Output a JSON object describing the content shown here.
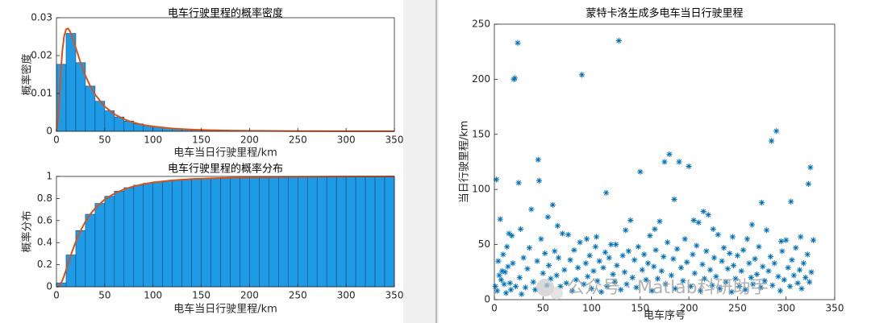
{
  "chart_data": [
    {
      "type": "histogram",
      "title": "电车行驶里程的概率密度",
      "xlabel": "电车当日行驶里程/km",
      "ylabel": "概率密度",
      "xlim": [
        0,
        350
      ],
      "ylim": [
        0,
        0.03
      ],
      "xticks": [
        0,
        50,
        100,
        150,
        200,
        250,
        300,
        350
      ],
      "yticks": [
        0,
        0.01,
        0.02,
        0.03
      ],
      "bins": [
        0,
        10,
        20,
        30,
        40,
        50,
        60,
        70,
        80,
        90,
        100,
        110,
        120,
        130,
        140,
        150,
        160,
        170,
        180,
        190,
        200,
        210,
        220,
        230,
        240,
        250,
        260,
        270,
        280,
        290,
        300,
        310,
        320,
        330,
        340,
        350
      ],
      "values": [
        0.01769,
        0.02585,
        0.01813,
        0.01194,
        0.00794,
        0.00542,
        0.00378,
        0.0027,
        0.00197,
        0.00146,
        0.0011,
        0.00084,
        0.00066,
        0.00051,
        0.00041,
        0.00033,
        0.00026,
        0.00021,
        0.00018,
        0.00014,
        0.00012,
        0.0001,
        8.5e-05,
        7.1e-05,
        6.1e-05,
        5.2e-05,
        4.4e-05,
        3.8e-05,
        3.3e-05,
        2.8e-05,
        2.5e-05,
        2.1e-05,
        1.9e-05,
        1.6e-05,
        1.4e-05
      ],
      "color": "#1f9be6",
      "line": {
        "x": [
          0,
          2,
          4,
          6,
          8,
          10,
          12,
          14,
          16,
          20,
          25,
          30,
          35,
          40,
          50,
          60,
          70,
          80,
          90,
          100,
          120,
          140,
          160,
          180,
          200,
          250,
          300,
          350
        ],
        "values": [
          0,
          0.00392,
          0.01354,
          0.021,
          0.0252,
          0.02696,
          0.02716,
          0.02643,
          0.0252,
          0.02207,
          0.01813,
          0.01472,
          0.01194,
          0.00971,
          0.00654,
          0.00451,
          0.00319,
          0.0023,
          0.00169,
          0.00127,
          0.00074,
          0.00046,
          0.00029,
          0.00019,
          0.00013,
          5.6e-05,
          2.6e-05,
          1.35e-05
        ],
        "color": "#d95319"
      }
    },
    {
      "type": "histogram",
      "title": "电车行驶里程的概率分布",
      "xlabel": "电车当日行驶里程/km",
      "ylabel": "概率分布",
      "xlim": [
        0,
        350
      ],
      "ylim": [
        0,
        1
      ],
      "xticks": [
        0,
        50,
        100,
        150,
        200,
        250,
        300,
        350
      ],
      "yticks": [
        0,
        0.2,
        0.4,
        0.6,
        0.8,
        1
      ],
      "bins": [
        0,
        10,
        20,
        30,
        40,
        50,
        60,
        70,
        80,
        90,
        100,
        110,
        120,
        130,
        140,
        150,
        160,
        170,
        180,
        190,
        200,
        210,
        220,
        230,
        240,
        250,
        260,
        270,
        280,
        290,
        300,
        310,
        320,
        330,
        340,
        350
      ],
      "values": [
        0.0353,
        0.288,
        0.509,
        0.657,
        0.755,
        0.82,
        0.866,
        0.898,
        0.921,
        0.938,
        0.951,
        0.96,
        0.968,
        0.974,
        0.978,
        0.982,
        0.985,
        0.987,
        0.989,
        0.991,
        0.992,
        0.993,
        0.994,
        0.995,
        0.9955,
        0.996,
        0.9966,
        0.997,
        0.9973,
        0.9976,
        0.9979,
        0.9981,
        0.9983,
        0.9985,
        0.9987
      ],
      "color": "#1f9be6",
      "line": {
        "x": [
          0,
          2,
          4,
          6,
          8,
          10,
          12,
          14,
          16,
          20,
          25,
          30,
          35,
          40,
          50,
          60,
          70,
          80,
          90,
          100,
          120,
          140,
          160,
          180,
          200,
          250,
          300,
          350
        ],
        "values": [
          0,
          0.0022,
          0.0197,
          0.0548,
          0.1013,
          0.154,
          0.208,
          0.262,
          0.314,
          0.408,
          0.509,
          0.59,
          0.657,
          0.711,
          0.791,
          0.845,
          0.883,
          0.91,
          0.93,
          0.945,
          0.964,
          0.976,
          0.983,
          0.988,
          0.991,
          0.9958,
          0.9978,
          0.9987
        ],
        "color": "#d95319"
      }
    },
    {
      "type": "scatter",
      "title": "蒙特卡洛生成多电车当日行驶里程",
      "xlabel": "电车序号",
      "ylabel": "当日行驶里程/km",
      "xlim": [
        0,
        350
      ],
      "ylim": [
        0,
        250
      ],
      "xticks": [
        0,
        50,
        100,
        150,
        200,
        250,
        300,
        350
      ],
      "yticks": [
        0,
        50,
        100,
        150,
        200,
        250
      ],
      "color": "#0072bd",
      "x": [
        1,
        2,
        3,
        4,
        5,
        6,
        7,
        8,
        9,
        10,
        11,
        12,
        13,
        14,
        15,
        16,
        17,
        18,
        19,
        20,
        21,
        22,
        24,
        25,
        26,
        27,
        28,
        30,
        32,
        34,
        36,
        38,
        40,
        42,
        44,
        45,
        46,
        48,
        50,
        52,
        54,
        55,
        56,
        58,
        60,
        62,
        64,
        65,
        66,
        68,
        70,
        72,
        74,
        76,
        78,
        80,
        82,
        84,
        86,
        88,
        90,
        92,
        94,
        95,
        96,
        98,
        100,
        102,
        104,
        105,
        106,
        108,
        110,
        112,
        114,
        115,
        116,
        118,
        120,
        122,
        124,
        125,
        126,
        128,
        130,
        132,
        134,
        135,
        136,
        138,
        140,
        142,
        144,
        146,
        148,
        150,
        152,
        154,
        156,
        158,
        160,
        162,
        164,
        165,
        166,
        168,
        170,
        172,
        174,
        175,
        176,
        178,
        180,
        182,
        184,
        185,
        186,
        188,
        190,
        192,
        194,
        196,
        198,
        200,
        202,
        204,
        205,
        206,
        208,
        210,
        212,
        214,
        215,
        216,
        218,
        220,
        222,
        224,
        225,
        226,
        228,
        230,
        232,
        234,
        236,
        238,
        240,
        242,
        244,
        245,
        246,
        248,
        250,
        252,
        254,
        256,
        258,
        260,
        262,
        264,
        265,
        266,
        268,
        270,
        272,
        274,
        275,
        276,
        278,
        280,
        282,
        284,
        285,
        286,
        288,
        290,
        292,
        294,
        295,
        296,
        298,
        300,
        302,
        304,
        305,
        306,
        308,
        310,
        312,
        314,
        315,
        316,
        318,
        320,
        322,
        323,
        324,
        325,
        326,
        328
      ],
      "values": [
        12,
        109,
        8,
        35,
        22,
        73,
        18,
        26,
        41,
        14,
        25,
        6,
        48,
        30,
        60,
        15,
        9,
        58,
        33,
        200,
        201,
        12,
        233,
        106,
        20,
        64,
        5,
        38,
        11,
        28,
        47,
        82,
        16,
        9,
        35,
        127,
        108,
        55,
        24,
        42,
        13,
        75,
        31,
        19,
        86,
        44,
        22,
        67,
        38,
        12,
        60,
        27,
        15,
        59,
        36,
        8,
        45,
        18,
        29,
        52,
        204,
        14,
        33,
        55,
        21,
        40,
        10,
        26,
        48,
        57,
        17,
        35,
        7,
        29,
        43,
        97,
        12,
        38,
        50,
        23,
        16,
        50,
        31,
        235,
        9,
        40,
        25,
        63,
        14,
        44,
        72,
        20,
        36,
        11,
        48,
        116,
        27,
        41,
        18,
        33,
        58,
        8,
        30,
        64,
        45,
        19,
        71,
        26,
        39,
        125,
        14,
        52,
        132,
        22,
        37,
        91,
        10,
        46,
        125,
        29,
        17,
        55,
        34,
        121,
        12,
        41,
        72,
        24,
        49,
        70,
        8,
        32,
        80,
        19,
        44,
        77,
        27,
        13,
        64,
        38,
        21,
        59,
        10,
        35,
        47,
        16,
        28,
        42,
        7,
        57,
        31,
        19,
        40,
        12,
        26,
        45,
        9,
        55,
        33,
        20,
        68,
        14,
        37,
        23,
        48,
        11,
        88,
        30,
        17,
        63,
        26,
        39,
        144,
        13,
        33,
        153,
        21,
        8,
        53,
        44,
        18,
        54,
        29,
        12,
        89,
        36,
        22,
        47,
        15,
        27,
        57,
        10,
        33,
        20,
        41,
        105,
        16,
        120,
        25,
        54
      ]
    }
  ],
  "watermark": "公众号 · Matlab科研助手"
}
